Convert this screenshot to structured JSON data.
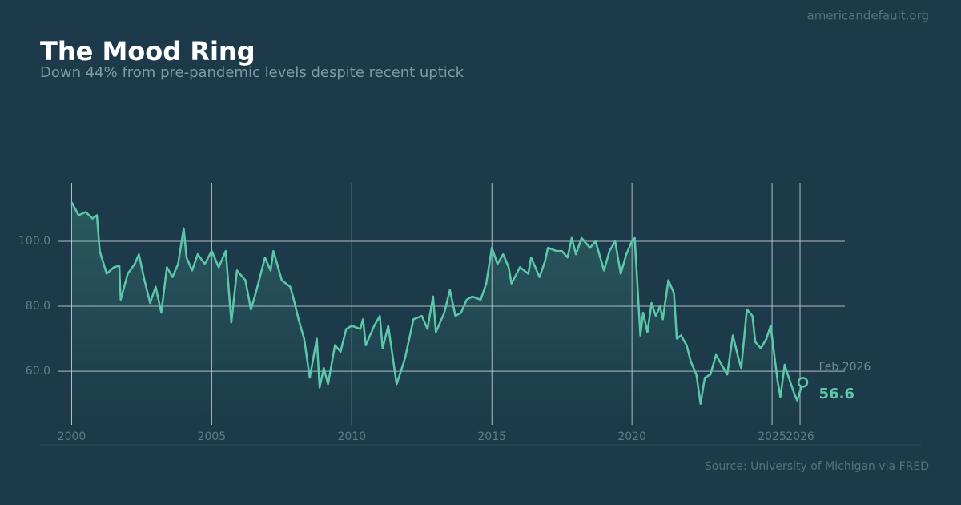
{
  "site": "americandefault.org",
  "source": "Source: University of Michigan via FRED",
  "chart_data": {
    "type": "line",
    "title": "The Mood Ring",
    "subtitle": "Down 44% from pre-pandemic levels despite recent uptick",
    "xlim": [
      1999.5,
      2027.6
    ],
    "ylim": [
      43.5,
      118
    ],
    "xticks": [
      2000,
      2005,
      2010,
      2015,
      2020,
      2025,
      2026
    ],
    "yticks": [
      {
        "value": 60,
        "label": "60.0"
      },
      {
        "value": 80,
        "label": "80.0"
      },
      {
        "value": 100,
        "label": "100.0"
      }
    ],
    "grid": true,
    "annotation": "Feb 2026",
    "series": [
      {
        "color": "#5cc8aa",
        "x": [
          2000.0,
          2000.25,
          2000.5,
          2000.75,
          2000.9,
          2001.0,
          2001.25,
          2001.5,
          2001.7,
          2001.75,
          2002.0,
          2002.25,
          2002.4,
          2002.6,
          2002.8,
          2003.0,
          2003.2,
          2003.4,
          2003.6,
          2003.8,
          2004.0,
          2004.1,
          2004.3,
          2004.5,
          2004.75,
          2005.0,
          2005.25,
          2005.5,
          2005.7,
          2005.9,
          2006.2,
          2006.4,
          2006.6,
          2006.9,
          2007.1,
          2007.2,
          2007.5,
          2007.8,
          2007.9,
          2008.1,
          2008.3,
          2008.5,
          2008.75,
          2008.85,
          2009.0,
          2009.15,
          2009.4,
          2009.6,
          2009.8,
          2010.0,
          2010.3,
          2010.4,
          2010.5,
          2010.8,
          2011.0,
          2011.1,
          2011.3,
          2011.6,
          2011.9,
          2012.2,
          2012.5,
          2012.7,
          2012.9,
          2013.0,
          2013.3,
          2013.5,
          2013.7,
          2013.9,
          2014.1,
          2014.3,
          2014.6,
          2014.8,
          2015.0,
          2015.2,
          2015.4,
          2015.6,
          2015.7,
          2016.0,
          2016.3,
          2016.4,
          2016.7,
          2016.9,
          2017.0,
          2017.3,
          2017.5,
          2017.7,
          2017.85,
          2018.0,
          2018.2,
          2018.5,
          2018.7,
          2019.0,
          2019.2,
          2019.4,
          2019.6,
          2019.8,
          2020.0,
          2020.1,
          2020.3,
          2020.4,
          2020.55,
          2020.7,
          2020.85,
          2021.0,
          2021.1,
          2021.3,
          2021.5,
          2021.6,
          2021.75,
          2021.95,
          2022.1,
          2022.3,
          2022.45,
          2022.6,
          2022.8,
          2023.0,
          2023.2,
          2023.4,
          2023.6,
          2023.8,
          2023.9,
          2024.1,
          2024.3,
          2024.4,
          2024.6,
          2024.8,
          2024.95,
          2025.2,
          2025.3,
          2025.45,
          2025.6,
          2025.8,
          2025.9,
          2026.1
        ],
        "values": [
          112,
          108,
          109,
          107,
          108,
          97,
          90,
          92,
          92.5,
          82,
          90,
          93,
          96,
          88,
          81,
          86,
          78,
          92,
          89,
          93,
          104,
          95,
          91,
          96,
          93,
          97,
          92,
          97,
          75,
          91,
          88,
          79,
          85,
          95,
          91,
          97,
          88,
          86,
          83,
          76,
          70,
          58,
          70,
          55,
          61,
          56,
          68,
          66,
          73,
          74,
          73,
          76,
          68,
          74,
          77,
          67,
          74,
          56,
          64,
          76,
          77,
          73,
          83,
          72,
          78,
          85,
          77,
          78,
          82,
          83,
          82,
          87,
          98,
          93,
          96,
          92,
          87,
          92,
          90,
          95,
          89,
          94,
          98,
          97,
          97,
          95,
          101,
          96,
          101,
          98,
          100,
          91,
          97,
          100,
          90,
          96,
          100,
          101,
          71,
          78,
          72,
          81,
          77,
          80,
          76,
          88,
          84,
          70,
          71,
          68,
          63,
          59,
          50,
          58,
          59,
          65,
          62,
          59,
          71,
          64,
          61,
          79,
          77,
          69,
          67,
          70,
          74,
          57,
          52,
          62,
          58,
          53,
          51,
          56.6
        ]
      }
    ]
  }
}
